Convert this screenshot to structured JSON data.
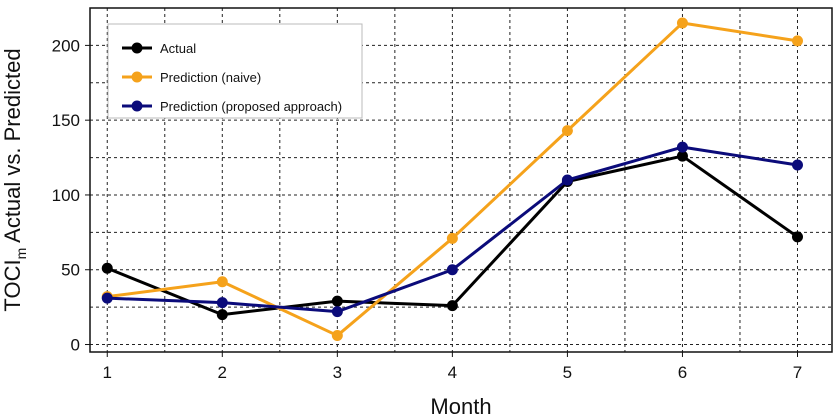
{
  "chart_data": {
    "type": "line",
    "xlabel": "Month",
    "ylabel_main": "TOCI",
    "ylabel_sub": "m",
    "ylabel_rest": " Actual vs. Predicted",
    "x": [
      1,
      2,
      3,
      4,
      5,
      6,
      7
    ],
    "x_tick_labels": [
      "1",
      "2",
      "3",
      "4",
      "5",
      "6",
      "7"
    ],
    "y_ticks": [
      0,
      50,
      100,
      150,
      200
    ],
    "xlim": [
      0.85,
      7.3
    ],
    "ylim": [
      -5,
      225
    ],
    "grid": true,
    "legend_position": "top-left",
    "series": [
      {
        "name": "Actual",
        "color": "#000000",
        "values": [
          51,
          20,
          29,
          26,
          109,
          126,
          72
        ]
      },
      {
        "name": "Prediction (naive)",
        "color": "#f5a21b",
        "values": [
          32,
          42,
          6,
          71,
          143,
          215,
          203
        ]
      },
      {
        "name": "Prediction (proposed approach)",
        "color": "#0b0b7a",
        "values": [
          31,
          28,
          22,
          50,
          110,
          132,
          120
        ]
      }
    ]
  }
}
